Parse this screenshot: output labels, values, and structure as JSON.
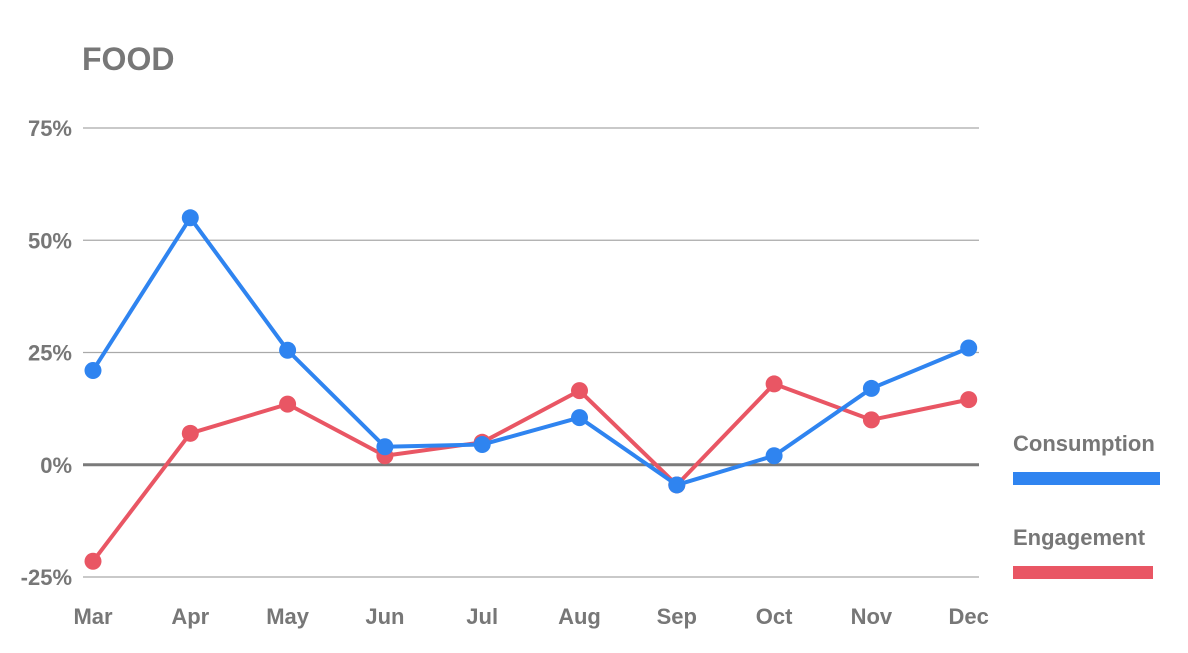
{
  "chart_data": {
    "type": "line",
    "title": "FOOD",
    "xlabel": "",
    "ylabel": "",
    "categories": [
      "Mar",
      "Apr",
      "May",
      "Jun",
      "Jul",
      "Aug",
      "Sep",
      "Oct",
      "Nov",
      "Dec"
    ],
    "y_ticks": [
      {
        "value": 75,
        "label": "75%"
      },
      {
        "value": 50,
        "label": "50%"
      },
      {
        "value": 25,
        "label": "25%"
      },
      {
        "value": 0,
        "label": "0%"
      },
      {
        "value": -25,
        "label": "-25%"
      }
    ],
    "ylim": [
      -25,
      75
    ],
    "grid": true,
    "legend_position": "right",
    "series": [
      {
        "name": "Consumption",
        "color": "#2f84f0",
        "values": [
          21,
          55,
          25.5,
          4,
          4.5,
          10.5,
          -4.5,
          2,
          17,
          26
        ]
      },
      {
        "name": "Engagement",
        "color": "#e95664",
        "values": [
          -21.5,
          7,
          13.5,
          2,
          5,
          16.5,
          -4.5,
          18,
          10,
          14.5
        ]
      }
    ]
  },
  "colors": {
    "text": "#777777",
    "grid": "#a9a9a9",
    "zero_line": "#7a7a7a"
  }
}
